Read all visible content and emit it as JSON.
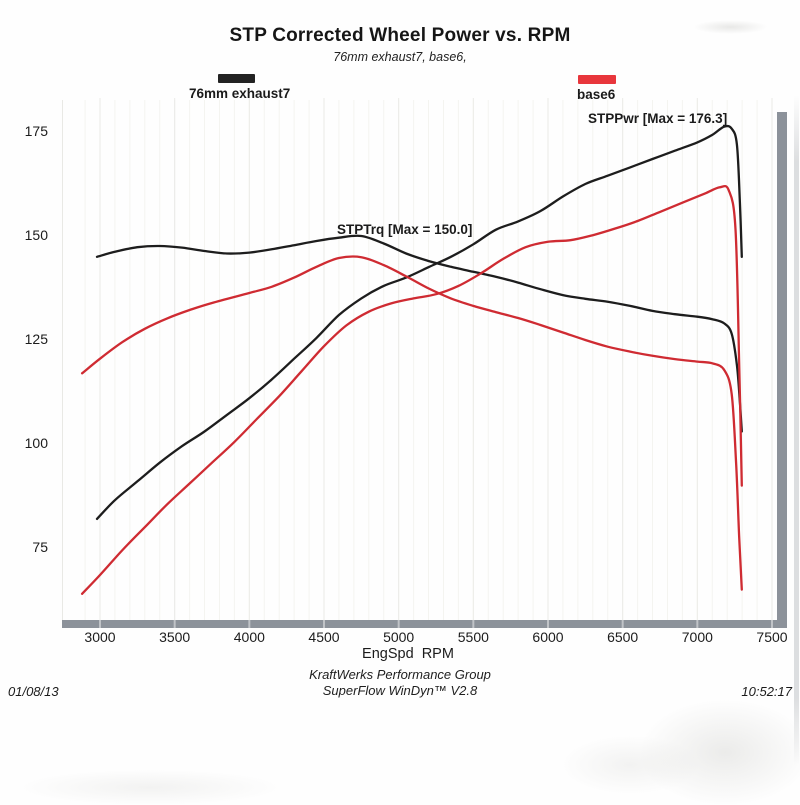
{
  "title": "STP Corrected Wheel Power vs. RPM",
  "subtitle": "76mm exhaust7, base6,",
  "legend": [
    {
      "label": "76mm exhaust7",
      "color": "#232323"
    },
    {
      "label": "base6",
      "color": "#e8363c"
    }
  ],
  "annotations": {
    "torque_max": "STPTrq [Max = 150.0]",
    "power_max": "STPPwr [Max = 176.3]"
  },
  "axes": {
    "x": {
      "label": "EngSpd  RPM",
      "ticks": [
        3000,
        3500,
        4000,
        4500,
        5000,
        5500,
        6000,
        6500,
        7000,
        7500
      ]
    },
    "y": {
      "ticks": [
        175,
        150,
        125,
        100,
        75
      ]
    }
  },
  "footer": {
    "line1": "KraftWerks Performance Group",
    "line2": "SuperFlow WinDyn™ V2.8",
    "date": "01/08/13",
    "time": "10:52:17"
  },
  "chart_data": {
    "type": "line",
    "title": "STP Corrected Wheel Power vs. RPM",
    "xlabel": "EngSpd RPM",
    "ylabel": "",
    "x_range": [
      2850,
      7550
    ],
    "y_range": [
      55,
      185
    ],
    "x_ticks": [
      3000,
      3500,
      4000,
      4500,
      5000,
      5500,
      6000,
      6500,
      7000,
      7500
    ],
    "y_ticks": [
      75,
      100,
      125,
      150,
      175
    ],
    "grid": "faint-vertical",
    "legend_position": "top",
    "series": [
      {
        "name": "76mm exhaust7 - STPPwr",
        "dataset": "76mm exhaust7",
        "channel": "STPPwr",
        "max": 176.3,
        "color": "#1d1d1d",
        "points": [
          [
            2980,
            82
          ],
          [
            3100,
            86.5
          ],
          [
            3250,
            91
          ],
          [
            3400,
            95.5
          ],
          [
            3550,
            99.5
          ],
          [
            3700,
            103
          ],
          [
            3850,
            107
          ],
          [
            4000,
            111
          ],
          [
            4150,
            115.5
          ],
          [
            4300,
            120.5
          ],
          [
            4450,
            125.5
          ],
          [
            4600,
            131
          ],
          [
            4750,
            135
          ],
          [
            4900,
            138
          ],
          [
            5050,
            140
          ],
          [
            5200,
            142.5
          ],
          [
            5350,
            145
          ],
          [
            5500,
            148
          ],
          [
            5650,
            151.5
          ],
          [
            5800,
            153.5
          ],
          [
            5950,
            156
          ],
          [
            6100,
            159.5
          ],
          [
            6250,
            162.5
          ],
          [
            6400,
            164.5
          ],
          [
            6550,
            166.5
          ],
          [
            6700,
            168.5
          ],
          [
            6850,
            170.5
          ],
          [
            7000,
            172.5
          ],
          [
            7100,
            174.3
          ],
          [
            7180,
            176.3
          ],
          [
            7230,
            175.8
          ],
          [
            7265,
            172
          ],
          [
            7285,
            158
          ],
          [
            7298,
            145
          ]
        ]
      },
      {
        "name": "76mm exhaust7 - STPTrq",
        "dataset": "76mm exhaust7",
        "channel": "STPTrq",
        "max": 150.0,
        "color": "#1d1d1d",
        "points": [
          [
            2980,
            145
          ],
          [
            3100,
            146.2
          ],
          [
            3250,
            147.3
          ],
          [
            3400,
            147.6
          ],
          [
            3550,
            147.2
          ],
          [
            3700,
            146.4
          ],
          [
            3850,
            145.8
          ],
          [
            4000,
            146
          ],
          [
            4150,
            146.8
          ],
          [
            4300,
            147.8
          ],
          [
            4450,
            148.8
          ],
          [
            4600,
            149.6
          ],
          [
            4750,
            150
          ],
          [
            4900,
            148.2
          ],
          [
            5050,
            145.8
          ],
          [
            5200,
            144
          ],
          [
            5350,
            142.6
          ],
          [
            5500,
            141.4
          ],
          [
            5650,
            140.2
          ],
          [
            5800,
            138.8
          ],
          [
            5950,
            137.2
          ],
          [
            6100,
            135.8
          ],
          [
            6250,
            134.9
          ],
          [
            6400,
            134.2
          ],
          [
            6550,
            133.2
          ],
          [
            6700,
            132
          ],
          [
            6850,
            131.2
          ],
          [
            7000,
            130.6
          ],
          [
            7100,
            130
          ],
          [
            7180,
            129
          ],
          [
            7230,
            126.5
          ],
          [
            7265,
            119
          ],
          [
            7285,
            110
          ],
          [
            7298,
            103
          ]
        ]
      },
      {
        "name": "base6 - STPPwr",
        "dataset": "base6",
        "channel": "STPPwr",
        "max": 161.8,
        "color": "#cf2b32",
        "points": [
          [
            2880,
            64
          ],
          [
            3000,
            68.5
          ],
          [
            3150,
            74.5
          ],
          [
            3300,
            80
          ],
          [
            3450,
            85.5
          ],
          [
            3600,
            90.5
          ],
          [
            3750,
            95.5
          ],
          [
            3900,
            100.5
          ],
          [
            4050,
            106
          ],
          [
            4200,
            111.5
          ],
          [
            4350,
            117.5
          ],
          [
            4500,
            123.5
          ],
          [
            4650,
            128.5
          ],
          [
            4800,
            131.8
          ],
          [
            4950,
            133.8
          ],
          [
            5100,
            135
          ],
          [
            5250,
            136
          ],
          [
            5400,
            138
          ],
          [
            5550,
            141
          ],
          [
            5700,
            144.5
          ],
          [
            5850,
            147.3
          ],
          [
            6000,
            148.6
          ],
          [
            6150,
            149
          ],
          [
            6300,
            150.2
          ],
          [
            6450,
            151.8
          ],
          [
            6600,
            153.6
          ],
          [
            6750,
            155.8
          ],
          [
            6900,
            158
          ],
          [
            7050,
            160.2
          ],
          [
            7150,
            161.7
          ],
          [
            7210,
            161
          ],
          [
            7255,
            152
          ],
          [
            7280,
            120
          ],
          [
            7298,
            90
          ]
        ]
      },
      {
        "name": "base6 - STPTrq",
        "dataset": "base6",
        "channel": "STPTrq",
        "max": 144.9,
        "color": "#cf2b32",
        "points": [
          [
            2880,
            117
          ],
          [
            3000,
            120.5
          ],
          [
            3150,
            124.5
          ],
          [
            3300,
            127.7
          ],
          [
            3450,
            130.2
          ],
          [
            3600,
            132.2
          ],
          [
            3750,
            133.9
          ],
          [
            4000,
            136.3
          ],
          [
            4150,
            137.8
          ],
          [
            4300,
            140
          ],
          [
            4450,
            142.6
          ],
          [
            4600,
            144.7
          ],
          [
            4750,
            144.9
          ],
          [
            4900,
            143
          ],
          [
            5050,
            140.3
          ],
          [
            5200,
            137.4
          ],
          [
            5350,
            135
          ],
          [
            5500,
            133.2
          ],
          [
            5650,
            131.7
          ],
          [
            5800,
            130.3
          ],
          [
            5950,
            128.6
          ],
          [
            6100,
            126.8
          ],
          [
            6250,
            125
          ],
          [
            6400,
            123.4
          ],
          [
            6550,
            122.2
          ],
          [
            6700,
            121.2
          ],
          [
            6850,
            120.4
          ],
          [
            7000,
            119.8
          ],
          [
            7100,
            119.4
          ],
          [
            7180,
            117.8
          ],
          [
            7230,
            112
          ],
          [
            7260,
            95
          ],
          [
            7280,
            78
          ],
          [
            7298,
            65
          ]
        ]
      }
    ]
  }
}
